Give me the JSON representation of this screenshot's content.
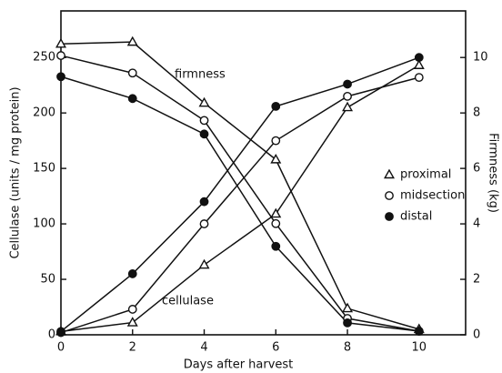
{
  "chart_data": {
    "type": "line",
    "xlabel": "Days after harvest",
    "ylabel": "Cellulase (units / mg protein)",
    "y2label": "Firmness (kg)",
    "x": [
      0,
      2,
      4,
      6,
      8,
      10
    ],
    "xlim": [
      0,
      11.3
    ],
    "xticks": [
      0,
      2,
      4,
      6,
      8,
      10
    ],
    "ylim": [
      0,
      292
    ],
    "yticks": [
      0,
      50,
      100,
      150,
      200,
      250
    ],
    "y2lim": [
      0,
      11.68
    ],
    "y2ticks": [
      0,
      2,
      4,
      6,
      8,
      10
    ],
    "annotations": [
      {
        "text": "firmness",
        "axis": "y2"
      },
      {
        "text": "cellulase",
        "axis": "y"
      }
    ],
    "color": "#111111",
    "series": [
      {
        "name": "proximal",
        "marker": "triangle",
        "values": [
          3,
          11,
          63,
          109,
          205,
          243
        ],
        "y2_values": [
          10.49,
          10.56,
          8.36,
          6.32,
          0.95,
          0.2
        ]
      },
      {
        "name": "midsection",
        "marker": "open-circle",
        "values": [
          2,
          23,
          100,
          175,
          215,
          232
        ],
        "y2_values": [
          10.07,
          9.44,
          7.73,
          4.01,
          0.59,
          0.13
        ]
      },
      {
        "name": "distal",
        "marker": "filled-circle",
        "values": [
          3,
          55,
          120,
          206,
          226,
          250
        ],
        "y2_values": [
          9.31,
          8.52,
          7.24,
          3.19,
          0.43,
          0.13
        ]
      }
    ]
  }
}
